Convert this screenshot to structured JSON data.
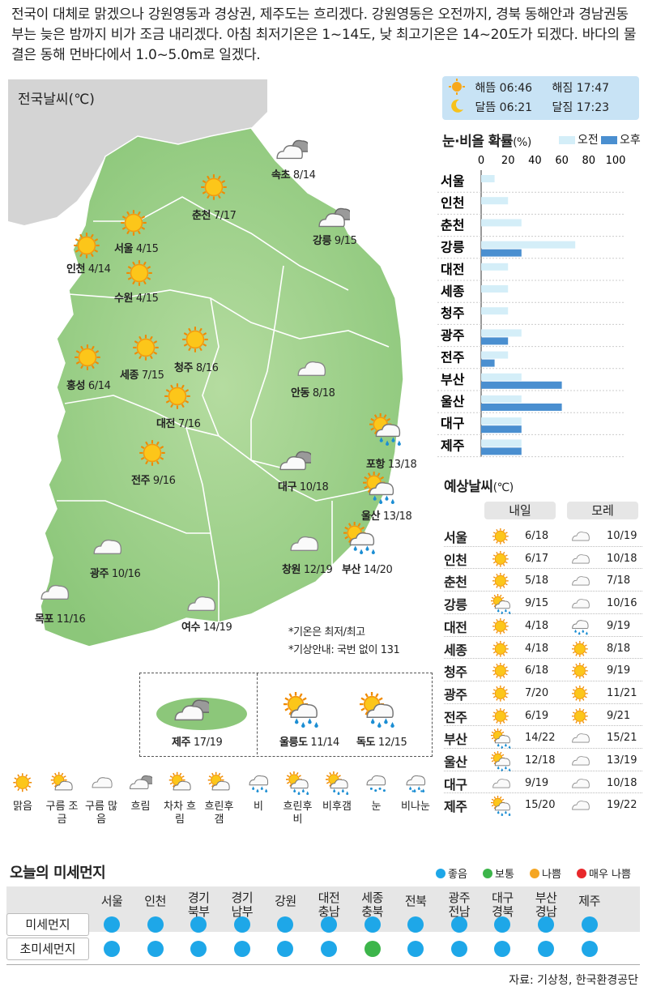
{
  "summary": "전국이 대체로 맑겠으나 강원영동과 경상권, 제주도는 흐리겠다. 강원영동은 오전까지, 경북 동해안과 경남권동부는 늦은 밤까지 비가 조금 내리겠다. 아침 최저기온은 1~14도, 낮 최고기온은 14~20도가 되겠다. 바다의 물결은 동해 먼바다에서 1.0~5.0m로 일겠다.",
  "map": {
    "title": "전국날씨(℃)",
    "cities": [
      {
        "name": "속초",
        "temp": "8/14",
        "icon": "cloudy"
      },
      {
        "name": "춘천",
        "temp": "7/17",
        "icon": "sun"
      },
      {
        "name": "서울",
        "temp": "4/15",
        "icon": "sun"
      },
      {
        "name": "인천",
        "temp": "4/14",
        "icon": "sun"
      },
      {
        "name": "강릉",
        "temp": "9/15",
        "icon": "cloudy"
      },
      {
        "name": "수원",
        "temp": "4/15",
        "icon": "sun"
      },
      {
        "name": "청주",
        "temp": "8/16",
        "icon": "sun"
      },
      {
        "name": "홍성",
        "temp": "6/14",
        "icon": "sun"
      },
      {
        "name": "세종",
        "temp": "7/15",
        "icon": "sun"
      },
      {
        "name": "대전",
        "temp": "7/16",
        "icon": "sun"
      },
      {
        "name": "안동",
        "temp": "8/18",
        "icon": "cloud"
      },
      {
        "name": "포항",
        "temp": "13/18",
        "icon": "sun-cloud-rain"
      },
      {
        "name": "전주",
        "temp": "9/16",
        "icon": "sun"
      },
      {
        "name": "대구",
        "temp": "10/18",
        "icon": "cloudy"
      },
      {
        "name": "울산",
        "temp": "13/18",
        "icon": "sun-cloud-rain"
      },
      {
        "name": "광주",
        "temp": "10/16",
        "icon": "cloud"
      },
      {
        "name": "창원",
        "temp": "12/19",
        "icon": "cloud"
      },
      {
        "name": "부산",
        "temp": "14/20",
        "icon": "sun-cloud-rain"
      },
      {
        "name": "목포",
        "temp": "11/16",
        "icon": "cloud"
      },
      {
        "name": "여수",
        "temp": "14/19",
        "icon": "cloud"
      }
    ],
    "islands": [
      {
        "name": "제주",
        "temp": "17/19",
        "icon": "cloudy"
      },
      {
        "name": "울릉도",
        "temp": "11/14",
        "icon": "sun-cloud-rain"
      },
      {
        "name": "독도",
        "temp": "12/15",
        "icon": "sun-cloud-rain"
      }
    ],
    "note1": "*기온은 최저/최고",
    "note2": "*기상안내: 국번 없이 131"
  },
  "sunmoon": {
    "sunrise_label": "해뜸",
    "sunrise": "06:46",
    "sunset_label": "해짐",
    "sunset": "17:47",
    "moonrise_label": "달뜸",
    "moonrise": "06:21",
    "moonset_label": "달짐",
    "moonset": "17:23"
  },
  "precip": {
    "title": "눈·비올 확률",
    "unit": "(%)",
    "legend_am": "오전",
    "legend_pm": "오후",
    "color_am": "#d4eef8",
    "color_pm": "#4a8fd0"
  },
  "chart_data": {
    "type": "bar",
    "orientation": "horizontal",
    "title": "눈·비올 확률(%)",
    "categories": [
      "서울",
      "인천",
      "춘천",
      "강릉",
      "대전",
      "세종",
      "청주",
      "광주",
      "전주",
      "부산",
      "울산",
      "대구",
      "제주"
    ],
    "x_ticks": [
      "0",
      "20",
      "40",
      "60",
      "80",
      "100"
    ],
    "xlim": [
      0,
      100
    ],
    "series": [
      {
        "name": "오전",
        "values": [
          10,
          20,
          30,
          70,
          20,
          20,
          20,
          30,
          20,
          30,
          30,
          30,
          30
        ]
      },
      {
        "name": "오후",
        "values": [
          0,
          0,
          0,
          30,
          0,
          0,
          0,
          20,
          10,
          60,
          60,
          30,
          30
        ]
      }
    ],
    "legend": "top-right"
  },
  "forecast": {
    "title": "예상날씨",
    "unit": "(℃)",
    "col_tomorrow": "내일",
    "col_dayafter": "모레",
    "rows": [
      {
        "name": "서울",
        "t1": "6/18",
        "i1": "sun",
        "t2": "10/19",
        "i2": "cloud"
      },
      {
        "name": "인천",
        "t1": "6/17",
        "i1": "sun",
        "t2": "10/18",
        "i2": "cloud"
      },
      {
        "name": "춘천",
        "t1": "5/18",
        "i1": "sun",
        "t2": "7/18",
        "i2": "cloud"
      },
      {
        "name": "강릉",
        "t1": "9/15",
        "i1": "sun-cloud-rain",
        "t2": "10/16",
        "i2": "cloud"
      },
      {
        "name": "대전",
        "t1": "4/18",
        "i1": "sun",
        "t2": "9/19",
        "i2": "rain"
      },
      {
        "name": "세종",
        "t1": "4/18",
        "i1": "sun",
        "t2": "8/18",
        "i2": "sun"
      },
      {
        "name": "청주",
        "t1": "6/18",
        "i1": "sun",
        "t2": "9/19",
        "i2": "sun"
      },
      {
        "name": "광주",
        "t1": "7/20",
        "i1": "sun",
        "t2": "11/21",
        "i2": "sun"
      },
      {
        "name": "전주",
        "t1": "6/19",
        "i1": "sun",
        "t2": "9/21",
        "i2": "sun"
      },
      {
        "name": "부산",
        "t1": "14/22",
        "i1": "sun-cloud-rain",
        "t2": "15/21",
        "i2": "cloud"
      },
      {
        "name": "울산",
        "t1": "12/18",
        "i1": "sun-cloud-rain",
        "t2": "13/19",
        "i2": "cloud"
      },
      {
        "name": "대구",
        "t1": "9/19",
        "i1": "cloud",
        "t2": "10/18",
        "i2": "cloud"
      },
      {
        "name": "제주",
        "t1": "15/20",
        "i1": "sun-cloud-rain",
        "t2": "19/22",
        "i2": "cloud"
      }
    ]
  },
  "legend": [
    {
      "icon": "sun",
      "label": "맑음"
    },
    {
      "icon": "sun-cloud",
      "label": "구름 조금"
    },
    {
      "icon": "cloud",
      "label": "구름 많음"
    },
    {
      "icon": "cloudy",
      "label": "흐림"
    },
    {
      "icon": "sun-cloud",
      "label": "차차 흐림"
    },
    {
      "icon": "sun-cloud",
      "label": "흐린후 갬"
    },
    {
      "icon": "rain",
      "label": "비"
    },
    {
      "icon": "sun-cloud-rain",
      "label": "흐린후 비"
    },
    {
      "icon": "sun-cloud-rain",
      "label": "비후갬"
    },
    {
      "icon": "snow",
      "label": "눈"
    },
    {
      "icon": "rain-snow",
      "label": "비나눈"
    }
  ],
  "dust": {
    "title": "오늘의 미세먼지",
    "legend": [
      {
        "label": "좋음",
        "color": "#1ea7e8"
      },
      {
        "label": "보통",
        "color": "#3cb54a"
      },
      {
        "label": "나쁨",
        "color": "#f5a623"
      },
      {
        "label": "매우 나쁨",
        "color": "#e8282b"
      }
    ],
    "regions": [
      "서울",
      "인천",
      "경기\n북부",
      "경기\n남부",
      "강원",
      "대전\n충남",
      "세종\n충북",
      "전북",
      "광주\n전남",
      "대구\n경북",
      "부산\n경남",
      "제주"
    ],
    "row1_label": "미세먼지",
    "row2_label": "초미세먼지",
    "row1": [
      "좋음",
      "좋음",
      "좋음",
      "좋음",
      "좋음",
      "좋음",
      "좋음",
      "좋음",
      "좋음",
      "좋음",
      "좋음",
      "좋음"
    ],
    "row2": [
      "좋음",
      "좋음",
      "좋음",
      "좋음",
      "좋음",
      "좋음",
      "보통",
      "좋음",
      "좋음",
      "좋음",
      "좋음",
      "좋음"
    ]
  },
  "source": "자료: 기상청, 한국환경공단"
}
